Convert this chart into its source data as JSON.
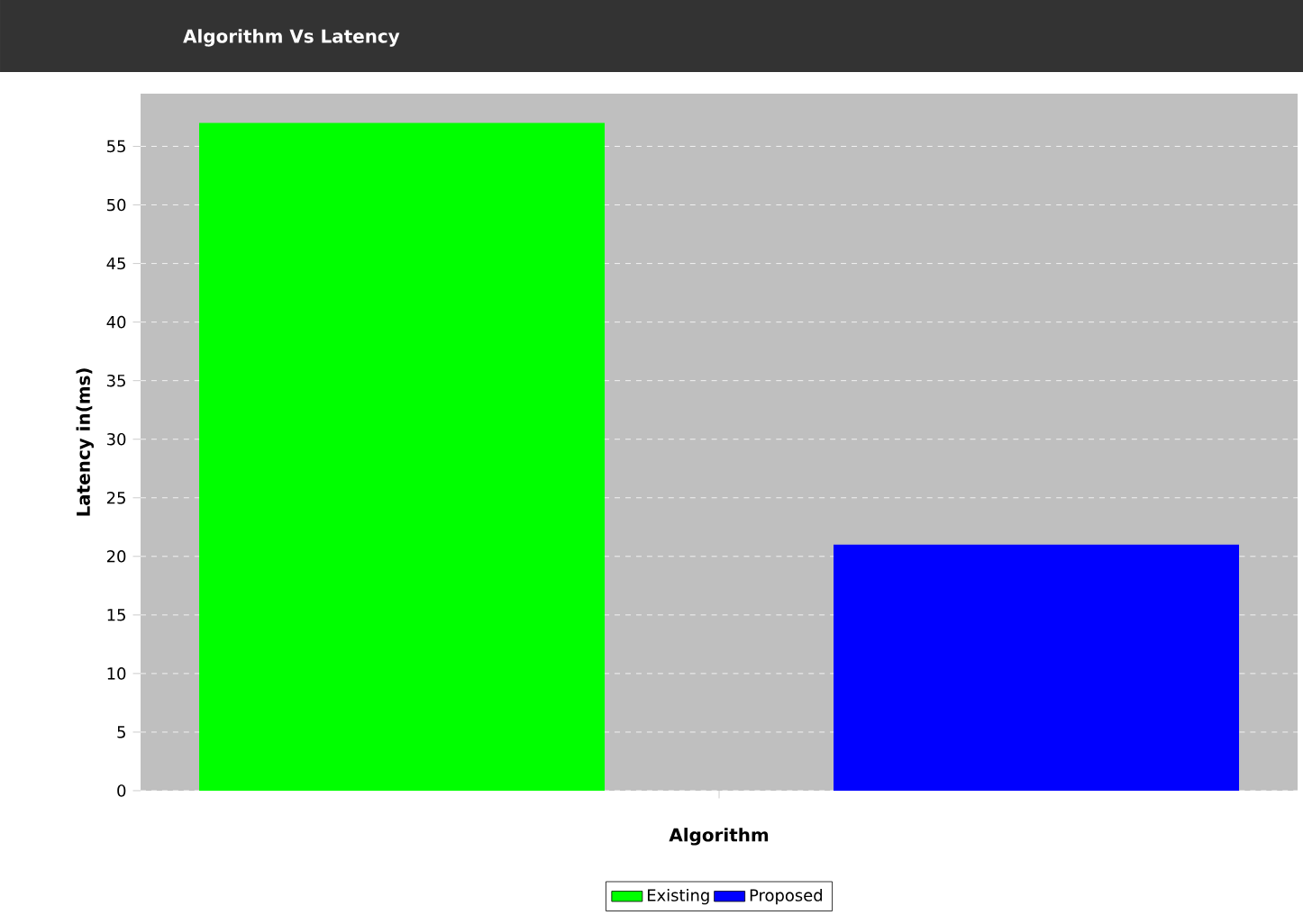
{
  "chart_data": {
    "type": "bar",
    "title": "Algorithm Vs Latency",
    "xlabel": "Algorithm",
    "ylabel": "Latency in(ms)",
    "categories": [
      null
    ],
    "series": [
      {
        "name": "Existing",
        "color": "#00ff00",
        "values": [
          57
        ]
      },
      {
        "name": "Proposed",
        "color": "#0000ff",
        "values": [
          21
        ]
      }
    ],
    "ylim": [
      0,
      59.5
    ],
    "yticks": [
      0,
      5,
      10,
      15,
      20,
      25,
      30,
      35,
      40,
      45,
      50,
      55
    ],
    "grid": "y",
    "legend": "bottom"
  }
}
